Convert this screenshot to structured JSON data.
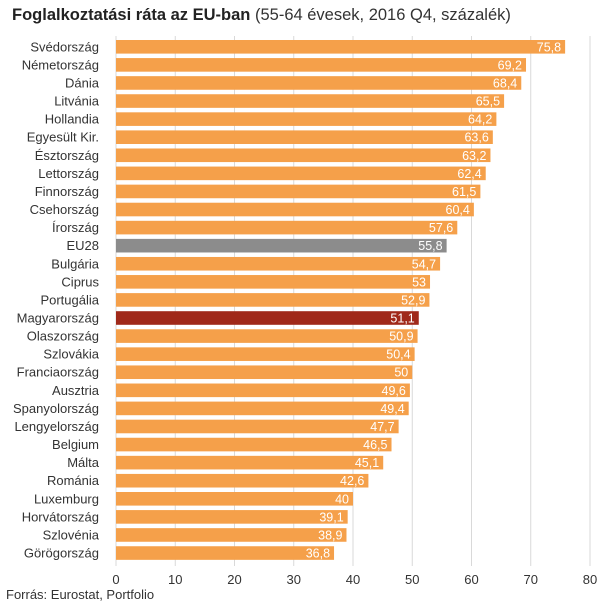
{
  "title": {
    "bold": "Foglalkoztatási ráta az EU-ban",
    "rest": " (55-64 évesek, 2016 Q4, százalék)"
  },
  "source": "Forrás: Eurostat, Portfolio",
  "colors": {
    "default": "#F5A04A",
    "eu28": "#8C8C8C",
    "highlight": "#A0291A",
    "grid": "#D9D9D9",
    "label": "#333333",
    "value_label": "#FFFFFF"
  },
  "chart_data": {
    "type": "bar",
    "orientation": "horizontal",
    "title": "Foglalkoztatási ráta az EU-ban (55-64 évesek, 2016 Q4, százalék)",
    "categories": [
      "Svédország",
      "Németország",
      "Dánia",
      "Litvánia",
      "Hollandia",
      "Egyesült Kir.",
      "Észtország",
      "Lettország",
      "Finnország",
      "Csehország",
      "Írország",
      "EU28",
      "Bulgária",
      "Ciprus",
      "Portugália",
      "Magyarország",
      "Olaszország",
      "Szlovákia",
      "Franciaország",
      "Ausztria",
      "Spanyolország",
      "Lengyelország",
      "Belgium",
      "Málta",
      "Románia",
      "Luxemburg",
      "Horvátország",
      "Szlovénia",
      "Görögország"
    ],
    "values": [
      75.8,
      69.2,
      68.4,
      65.5,
      64.2,
      63.6,
      63.2,
      62.4,
      61.5,
      60.4,
      57.6,
      55.8,
      54.7,
      53,
      52.9,
      51.1,
      50.9,
      50.4,
      50,
      49.6,
      49.4,
      47.7,
      46.5,
      45.1,
      42.6,
      40,
      39.1,
      38.9,
      36.8
    ],
    "value_labels": [
      "75,8",
      "69,2",
      "68,4",
      "65,5",
      "64,2",
      "63,6",
      "63,2",
      "62,4",
      "61,5",
      "60,4",
      "57,6",
      "55,8",
      "54,7",
      "53",
      "52,9",
      "51,1",
      "50,9",
      "50,4",
      "50",
      "49,6",
      "49,4",
      "47,7",
      "46,5",
      "45,1",
      "42,6",
      "40",
      "39,1",
      "38,9",
      "36,8"
    ],
    "highlighted": {
      "EU28": "eu28",
      "Magyarország": "highlight"
    },
    "x_ticks": [
      0,
      10,
      20,
      30,
      40,
      50,
      60,
      70,
      80
    ],
    "xlim": [
      0,
      80
    ],
    "grid": "vertical"
  }
}
